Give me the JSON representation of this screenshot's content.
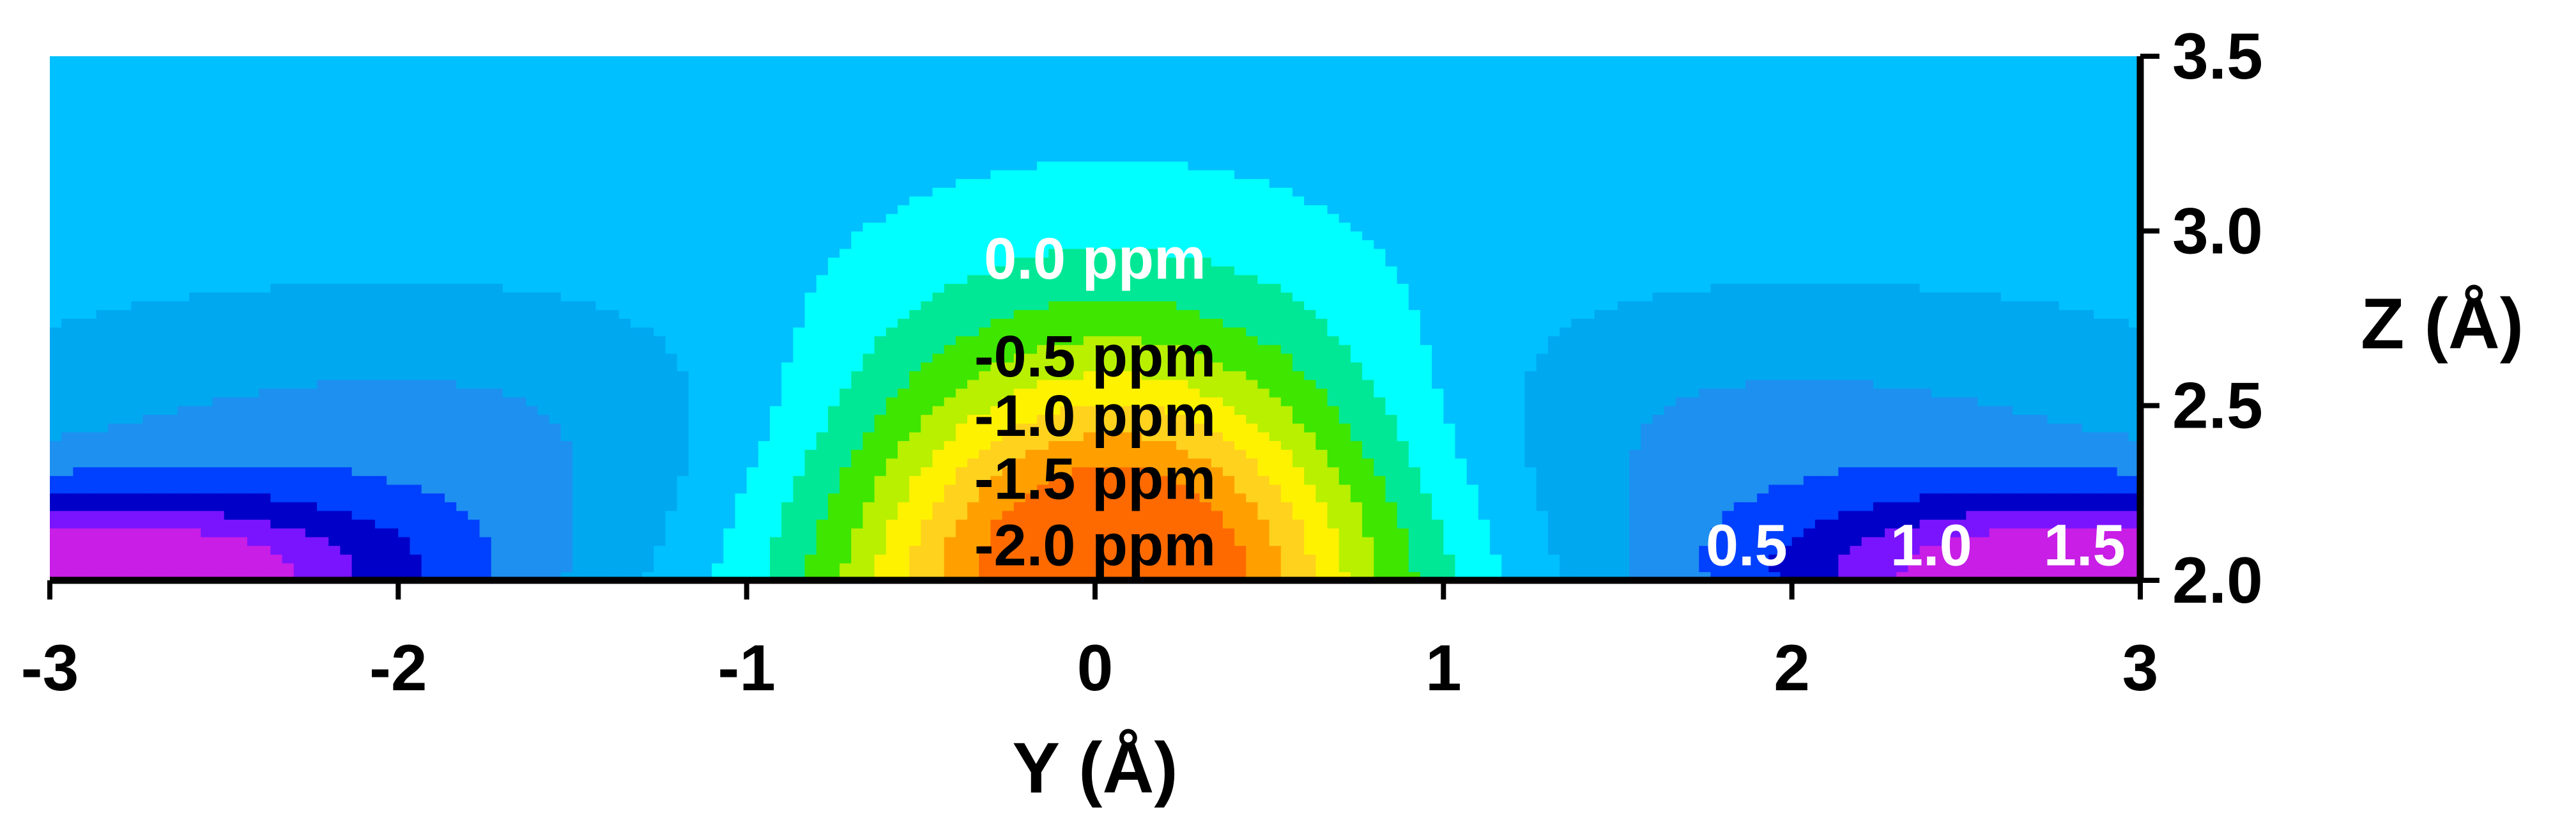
{
  "chart_data": {
    "type": "heatmap",
    "title": "",
    "xlabel": "Y (Å)",
    "ylabel": "Z (Å)",
    "xlim": [
      -3,
      3
    ],
    "ylim": [
      2.0,
      3.5
    ],
    "x_ticks": [
      "-3",
      "-2",
      "-1",
      "0",
      "1",
      "2",
      "3"
    ],
    "y_ticks": [
      "2.0",
      "2.5",
      "3.0",
      "3.5"
    ],
    "y_axis_side": "right",
    "grid": false,
    "legend": "none",
    "colorscale": {
      "levels": [
        -2.0,
        -1.75,
        -1.5,
        -1.25,
        -1.0,
        -0.75,
        -0.5,
        -0.25,
        0.0,
        0.25,
        0.5,
        0.75,
        1.0,
        1.25,
        1.5
      ],
      "colors": [
        "#ff6a00",
        "#ffa000",
        "#ffd21e",
        "#fff200",
        "#b8f000",
        "#3ee600",
        "#00e896",
        "#00ffff",
        "#00c0ff",
        "#00a8f0",
        "#1e90f0",
        "#0040ff",
        "#0000c8",
        "#7a14ff",
        "#c81ee6"
      ]
    },
    "contour_labels": [
      {
        "text": "0.0 ppm",
        "y": 0.0,
        "z": 2.92,
        "color": "#ffffff"
      },
      {
        "text": "-0.5 ppm",
        "y": 0.0,
        "z": 2.64,
        "color": "#000000"
      },
      {
        "text": "-1.0 ppm",
        "y": 0.0,
        "z": 2.47,
        "color": "#000000"
      },
      {
        "text": "-1.5 ppm",
        "y": 0.0,
        "z": 2.29,
        "color": "#000000"
      },
      {
        "text": "-2.0 ppm",
        "y": 0.0,
        "z": 2.1,
        "color": "#000000"
      },
      {
        "text": "0.5",
        "y": 1.87,
        "z": 2.1,
        "color": "#ffffff"
      },
      {
        "text": "1.0",
        "y": 2.4,
        "z": 2.1,
        "color": "#ffffff"
      },
      {
        "text": "1.5",
        "y": 2.84,
        "z": 2.1,
        "color": "#ffffff"
      }
    ]
  }
}
